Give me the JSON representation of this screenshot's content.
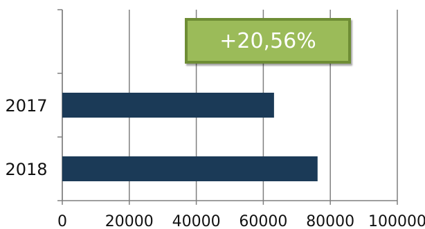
{
  "chart_data": {
    "type": "bar",
    "orientation": "horizontal",
    "categories": [
      "2017",
      "2018"
    ],
    "values": [
      63200,
      76200
    ],
    "xlim": [
      0,
      100000
    ],
    "x_ticks": [
      "0",
      "20000",
      "40000",
      "60000",
      "80000",
      "100000"
    ],
    "grid": true,
    "bar_color": "#1b3a57",
    "axis_color": "#7f7f7f",
    "annotation": "+20,56%",
    "annotation_fill": "#9bbb59",
    "annotation_border": "#6e8d35"
  }
}
